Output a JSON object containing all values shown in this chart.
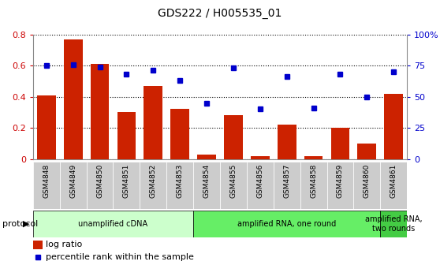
{
  "title": "GDS222 / H005535_01",
  "samples": [
    "GSM4848",
    "GSM4849",
    "GSM4850",
    "GSM4851",
    "GSM4852",
    "GSM4853",
    "GSM4854",
    "GSM4855",
    "GSM4856",
    "GSM4857",
    "GSM4858",
    "GSM4859",
    "GSM4860",
    "GSM4861"
  ],
  "log_ratio": [
    0.41,
    0.77,
    0.61,
    0.3,
    0.47,
    0.32,
    0.03,
    0.28,
    0.02,
    0.22,
    0.02,
    0.2,
    0.1,
    0.42
  ],
  "percentile_rank": [
    75,
    76,
    74,
    68,
    71,
    63,
    45,
    73,
    40,
    66,
    41,
    68,
    50,
    70
  ],
  "bar_color": "#cc2200",
  "dot_color": "#0000cc",
  "ylim_left": [
    0,
    0.8
  ],
  "ylim_right": [
    0,
    100
  ],
  "yticks_left": [
    0,
    0.2,
    0.4,
    0.6,
    0.8
  ],
  "ytick_labels_left": [
    "0",
    "0.2",
    "0.4",
    "0.6",
    "0.8"
  ],
  "yticks_right": [
    0,
    25,
    50,
    75,
    100
  ],
  "ytick_labels_right": [
    "0",
    "25",
    "50",
    "75",
    "100%"
  ],
  "protocol_groups": [
    {
      "label": "unamplified cDNA",
      "start": 0,
      "end": 6,
      "color": "#ccffcc"
    },
    {
      "label": "amplified RNA, one round",
      "start": 6,
      "end": 13,
      "color": "#66ee66"
    },
    {
      "label": "amplified RNA,\ntwo rounds",
      "start": 13,
      "end": 14,
      "color": "#44cc44"
    }
  ],
  "protocol_label": "protocol",
  "legend_bar_label": "log ratio",
  "legend_dot_label": "percentile rank within the sample",
  "tick_label_color_left": "#cc0000",
  "tick_label_color_right": "#0000cc",
  "bar_width": 0.7,
  "tick_bg_color": "#cccccc",
  "border_color": "#888888"
}
